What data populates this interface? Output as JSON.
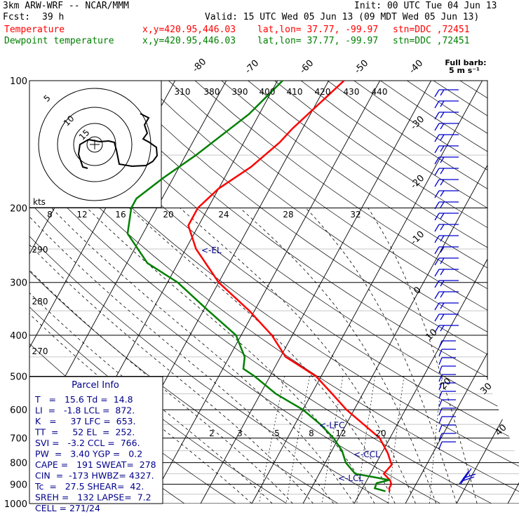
{
  "header": {
    "model": "3km ARW-WRF -- NCAR/MMM",
    "init": "Init: 00 UTC Tue 04 Jun 13",
    "fcst_label": "Fcst:",
    "fcst_value": "39 h",
    "valid": "Valid: 15 UTC Wed 05 Jun 13 (09 MDT Wed 05 Jun 13)",
    "temperature_label": "Temperature",
    "dewpoint_label": "Dewpoint temperature",
    "xy": "x,y=420.95,446.03",
    "latlon": "lat,lon= 37.77, -99.97",
    "stn": "stn=DDC ,72451",
    "colors": {
      "temperature": "#ff0000",
      "dewpoint": "#008000",
      "header": "#000000",
      "info": "#00008b",
      "barbs": "#0000cd"
    }
  },
  "barb_legend": {
    "line1": "Full barb:",
    "line2": "5 m s⁻¹"
  },
  "chart_data": [
    {
      "type": "line",
      "subtype": "skew-T log-P sounding",
      "y_axis": {
        "scale": "log",
        "label": "",
        "ticks": [
          100,
          200,
          300,
          400,
          500,
          600,
          700,
          800,
          900,
          1000
        ],
        "range": [
          1000,
          100
        ]
      },
      "isotherm_labels": [
        -80,
        -70,
        -60,
        -50,
        -40,
        -30,
        -20,
        -10,
        0,
        10,
        20,
        30,
        40
      ],
      "theta_labels": [
        310,
        380,
        390,
        400,
        410,
        420,
        430,
        440
      ],
      "theta_side_labels": [
        290,
        280,
        270
      ],
      "mixing_ratio_labels": [
        2,
        3,
        5,
        8,
        12,
        20
      ],
      "series": [
        {
          "name": "Temperature",
          "color": "#ff0000",
          "points": [
            [
              100,
              -37
            ],
            [
              130,
              -42
            ],
            [
              140,
              -43
            ],
            [
              160,
              -46
            ],
            [
              180,
              -50
            ],
            [
              200,
              -52
            ],
            [
              220,
              -52
            ],
            [
              250,
              -48
            ],
            [
              300,
              -40
            ],
            [
              350,
              -31
            ],
            [
              400,
              -24
            ],
            [
              450,
              -19
            ],
            [
              500,
              -11
            ],
            [
              550,
              -6
            ],
            [
              600,
              -1.5
            ],
            [
              700,
              8
            ],
            [
              760,
              11.2
            ],
            [
              810,
              13.2
            ],
            [
              850,
              12.6
            ],
            [
              880,
              14.5
            ],
            [
              900,
              15.2
            ],
            [
              920,
              15.2
            ],
            [
              935,
              15.6
            ]
          ]
        },
        {
          "name": "Dewpoint temperature",
          "color": "#008000",
          "points": [
            [
              100,
              -49
            ],
            [
              120,
              -52
            ],
            [
              150,
              -58
            ],
            [
              170,
              -62
            ],
            [
              190,
              -65
            ],
            [
              200,
              -65
            ],
            [
              230,
              -63
            ],
            [
              270,
              -56
            ],
            [
              300,
              -48
            ],
            [
              350,
              -39
            ],
            [
              400,
              -31
            ],
            [
              450,
              -27
            ],
            [
              480,
              -26
            ],
            [
              500,
              -23
            ],
            [
              550,
              -17
            ],
            [
              600,
              -10
            ],
            [
              650,
              -5
            ],
            [
              700,
              -1
            ],
            [
              750,
              2
            ],
            [
              800,
              4
            ],
            [
              850,
              7
            ],
            [
              870,
              12
            ],
            [
              880,
              14.3
            ],
            [
              895,
              12.2
            ],
            [
              920,
              12.4
            ],
            [
              935,
              14.8
            ]
          ]
        }
      ],
      "levels": [
        {
          "label": "<-EL",
          "p": 252
        },
        {
          "label": "<-LFC",
          "p": 653
        },
        {
          "label": "<-CCL",
          "p": 766
        },
        {
          "label": "<-LCL",
          "p": 872
        }
      ]
    },
    {
      "type": "hodograph",
      "ring_labels": [
        "5",
        "10",
        "15"
      ],
      "axis_label": "kts",
      "speed_ticks": [
        8,
        12,
        16,
        20,
        24,
        28,
        32
      ]
    }
  ],
  "parcel_info": {
    "title": "Parcel Info",
    "rows": [
      "T   =   15.6 Td =  14.8",
      "LI  =   -1.8 LCL =  872.",
      "K   =     37 LFC =  653.",
      "TT  =     52 EL  =  252.",
      "SVI =   -3.2 CCL =  766.",
      "PW  =   3.40 YGP =   0.2",
      "CAPE =   191 SWEAT=  278",
      "CIN  =  -173 HWBZ= 4327.",
      "Tc  =   27.5 SHEAR=  42.",
      "SREH =   132 LAPSE=  7.2",
      "CELL = 271/24"
    ]
  }
}
